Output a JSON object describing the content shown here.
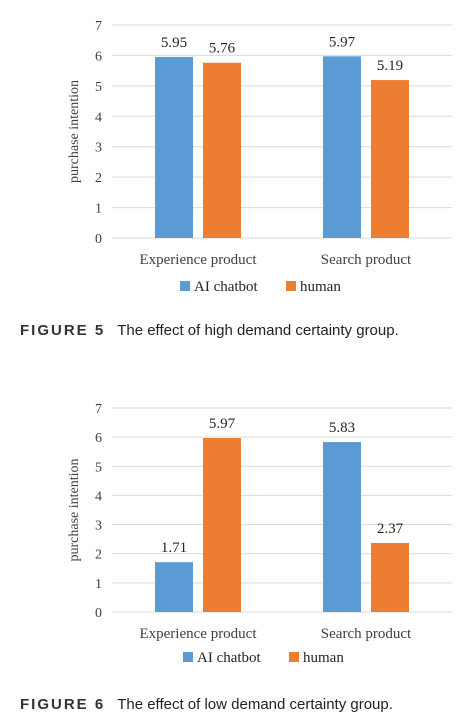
{
  "colors": {
    "ai": "#5b9bd5",
    "human": "#ed7d31",
    "grid": "#d9d9d9"
  },
  "chart_data": [
    {
      "type": "bar",
      "ylabel": "purchase intention",
      "ylim": [
        0,
        7
      ],
      "yticks": [
        "0",
        "1",
        "2",
        "3",
        "4",
        "5",
        "6",
        "7"
      ],
      "categories": [
        "Experience product",
        "Search product"
      ],
      "series": [
        {
          "name": "AI chatbot",
          "values": [
            5.95,
            5.97
          ],
          "labels": [
            "5.95",
            "5.97"
          ]
        },
        {
          "name": "human",
          "values": [
            5.76,
            5.19
          ],
          "labels": [
            "5.76",
            "5.19"
          ]
        }
      ],
      "grid": true,
      "legend": "bottom",
      "caption_number": "FIGURE 5",
      "caption_text": "The effect of high demand certainty group."
    },
    {
      "type": "bar",
      "ylabel": "purchase intention",
      "ylim": [
        0,
        7
      ],
      "yticks": [
        "0",
        "1",
        "2",
        "3",
        "4",
        "5",
        "6",
        "7"
      ],
      "categories": [
        "Experience product",
        "Search product"
      ],
      "series": [
        {
          "name": "AI chatbot",
          "values": [
            1.71,
            5.83
          ],
          "labels": [
            "1.71",
            "5.83"
          ]
        },
        {
          "name": "human",
          "values": [
            5.97,
            2.37
          ],
          "labels": [
            "5.97",
            "2.37"
          ]
        }
      ],
      "grid": true,
      "legend": "bottom",
      "caption_number": "FIGURE 6",
      "caption_text": "The effect of low demand certainty group."
    }
  ]
}
